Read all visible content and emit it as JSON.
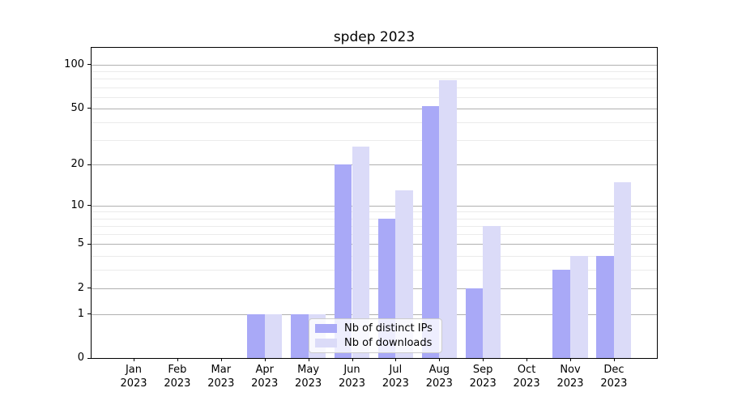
{
  "chart_data": {
    "type": "bar",
    "title": "spdep 2023",
    "xlabel": "",
    "ylabel": "",
    "year": "2023",
    "categories": [
      "Jan",
      "Feb",
      "Mar",
      "Apr",
      "May",
      "Jun",
      "Jul",
      "Aug",
      "Sep",
      "Oct",
      "Nov",
      "Dec"
    ],
    "series": [
      {
        "name": "Nb of distinct IPs",
        "color": "#a9a9f7",
        "values": [
          0,
          0,
          0,
          1,
          1,
          20,
          8,
          52,
          2,
          0,
          3,
          4
        ]
      },
      {
        "name": "Nb of downloads",
        "color": "#dbdbf8",
        "values": [
          0,
          0,
          0,
          1,
          1,
          27,
          13,
          78,
          7,
          0,
          4,
          15
        ]
      }
    ],
    "yscale": "log1p",
    "ylim": [
      0,
      131
    ],
    "y_major_ticks": [
      0,
      1,
      2,
      5,
      10,
      20,
      50,
      100
    ],
    "y_minor_gridlines": [
      3,
      4,
      6,
      7,
      8,
      9,
      30,
      40,
      60,
      70,
      80,
      90
    ],
    "grid": true,
    "legend_position": "lower-center",
    "colors": {
      "major_grid": "#b0b0b0",
      "minor_grid": "#ebebeb",
      "spine": "#000000",
      "text": "#000000",
      "legend_border": "#cccccc"
    }
  }
}
